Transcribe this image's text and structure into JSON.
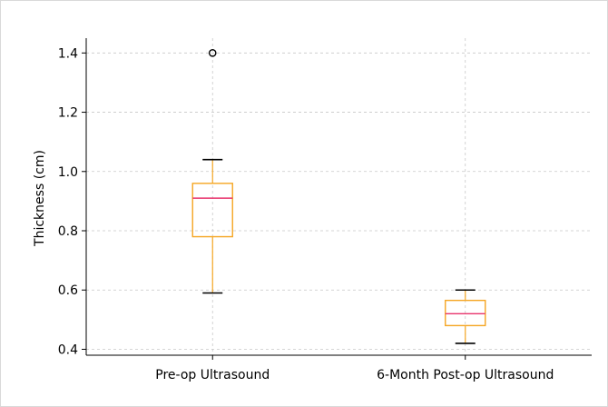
{
  "chart_data": {
    "type": "box",
    "title": "",
    "xlabel": "",
    "ylabel": "Thickness (cm)",
    "ylim": [
      0.38,
      1.45
    ],
    "yticks": [
      0.4,
      0.6,
      0.8,
      1.0,
      1.2,
      1.4
    ],
    "ytick_labels": [
      "0.4",
      "0.6",
      "0.8",
      "1.0",
      "1.2",
      "1.4"
    ],
    "grid": true,
    "categories": [
      "Pre-op Ultrasound",
      "6-Month Post-op Ultrasound"
    ],
    "boxes": [
      {
        "whisker_low": 0.59,
        "q1": 0.78,
        "median": 0.91,
        "q3": 0.96,
        "whisker_high": 1.04,
        "outliers": [
          1.4
        ]
      },
      {
        "whisker_low": 0.42,
        "q1": 0.48,
        "median": 0.52,
        "q3": 0.565,
        "whisker_high": 0.6,
        "outliers": []
      }
    ],
    "colors": {
      "box": "#f5a623",
      "median": "#e8336b",
      "whisker_cap": "#000000",
      "grid": "#c8c8c8",
      "outlier": "#000000"
    }
  }
}
